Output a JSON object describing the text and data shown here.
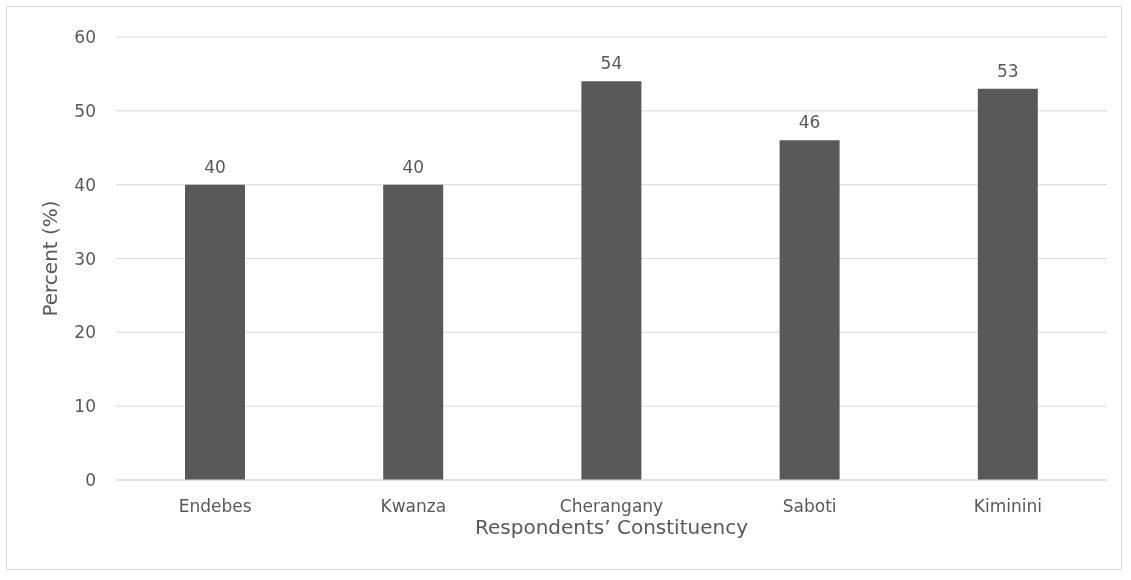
{
  "chart_data": {
    "type": "bar",
    "xlabel": "Respondents’ Constituency",
    "ylabel": "Percent (%)",
    "categories": [
      "Endebes",
      "Kwanza",
      "Cherangany",
      "Saboti",
      "Kiminini"
    ],
    "values": [
      40,
      40,
      54,
      46,
      53
    ],
    "color": "#595959",
    "ylim": [
      0,
      60
    ],
    "yticks": [
      0,
      10,
      20,
      30,
      40,
      50,
      60
    ],
    "grid": "y",
    "data_labels": true
  }
}
